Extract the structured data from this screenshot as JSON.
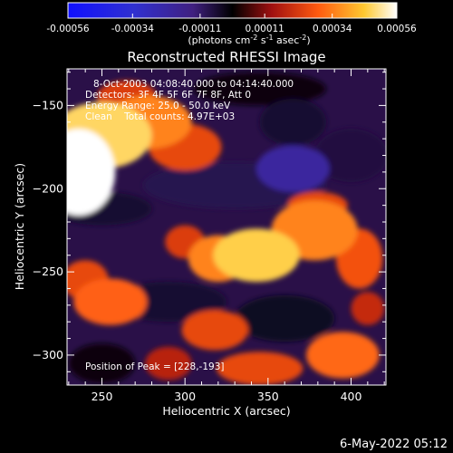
{
  "chart_data": {
    "type": "heatmap",
    "title": "Reconstructed RHESSI Image",
    "colorbar": {
      "tick_labels": [
        "-0.00056",
        "-0.00034",
        "-0.00011",
        "0.00011",
        "0.00034",
        "0.00056"
      ],
      "tick_values": [
        -0.00056,
        -0.00034,
        -0.00011,
        0.00011,
        0.00034,
        0.00056
      ],
      "range": [
        -0.00056,
        0.00056
      ],
      "units_prefix": "(photons cm",
      "units_exp1": "-2",
      "units_mid": " s",
      "units_exp2": "-1",
      "units_mid2": " asec",
      "units_exp3": "-2",
      "units_suffix": ")",
      "colors": [
        "#1010ff",
        "#3030d0",
        "#402080",
        "#000000",
        "#a01010",
        "#ff5a10",
        "#ffc830",
        "#ffffff"
      ]
    },
    "xlabel": "Heliocentric X (arcsec)",
    "ylabel": "Heliocentric Y (arcsec)",
    "xlim": [
      229,
      421
    ],
    "ylim": [
      -318,
      -128
    ],
    "xticks": [
      250,
      300,
      350,
      400
    ],
    "yticks": [
      -150,
      -200,
      -250,
      -300
    ],
    "annotations": [
      "8-Oct-2003 04:08:40.000 to 04:14:40.000",
      "Detectors: 3F 4F 5F 6F 7F 8F, Att 0",
      "Energy Range: 25.0 - 50.0 keV",
      "Clean    Total counts: 4.97E+03"
    ],
    "peak_label": "Position of Peak = [228,-193]",
    "peak": {
      "x": 228,
      "y": -193
    },
    "blobs": [
      {
        "x": 236,
        "y": -190,
        "rx": 22,
        "ry": 26,
        "v": 0.00056
      },
      {
        "x": 250,
        "y": -168,
        "rx": 30,
        "ry": 20,
        "v": 0.00044
      },
      {
        "x": 278,
        "y": -160,
        "rx": 26,
        "ry": 16,
        "v": 0.0003
      },
      {
        "x": 300,
        "y": -175,
        "rx": 22,
        "ry": 14,
        "v": 0.0002
      },
      {
        "x": 265,
        "y": -145,
        "rx": 18,
        "ry": 10,
        "v": 0.00018
      },
      {
        "x": 343,
        "y": -240,
        "rx": 26,
        "ry": 16,
        "v": 0.00042
      },
      {
        "x": 320,
        "y": -242,
        "rx": 18,
        "ry": 14,
        "v": 0.0003
      },
      {
        "x": 378,
        "y": -225,
        "rx": 26,
        "ry": 18,
        "v": 0.0003
      },
      {
        "x": 405,
        "y": -242,
        "rx": 14,
        "ry": 18,
        "v": 0.00022
      },
      {
        "x": 300,
        "y": -232,
        "rx": 12,
        "ry": 10,
        "v": 0.00018
      },
      {
        "x": 380,
        "y": -210,
        "rx": 18,
        "ry": 8,
        "v": 0.0002
      },
      {
        "x": 255,
        "y": -268,
        "rx": 22,
        "ry": 14,
        "v": 0.00025
      },
      {
        "x": 240,
        "y": -255,
        "rx": 14,
        "ry": 12,
        "v": 0.0002
      },
      {
        "x": 318,
        "y": -285,
        "rx": 20,
        "ry": 12,
        "v": 0.0002
      },
      {
        "x": 290,
        "y": -305,
        "rx": 14,
        "ry": 10,
        "v": 0.00012
      },
      {
        "x": 395,
        "y": -300,
        "rx": 22,
        "ry": 14,
        "v": 0.00026
      },
      {
        "x": 345,
        "y": -308,
        "rx": 26,
        "ry": 10,
        "v": 0.0002
      },
      {
        "x": 410,
        "y": -272,
        "rx": 10,
        "ry": 10,
        "v": 0.00014
      },
      {
        "x": 250,
        "y": -212,
        "rx": 30,
        "ry": 10,
        "v": -0.00014
      },
      {
        "x": 330,
        "y": -198,
        "rx": 55,
        "ry": 14,
        "v": -0.00018
      },
      {
        "x": 365,
        "y": -188,
        "rx": 22,
        "ry": 14,
        "v": -0.0003
      },
      {
        "x": 400,
        "y": -180,
        "rx": 22,
        "ry": 16,
        "v": -0.00016
      },
      {
        "x": 365,
        "y": -160,
        "rx": 20,
        "ry": 14,
        "v": -0.00014
      },
      {
        "x": 290,
        "y": -268,
        "rx": 35,
        "ry": 12,
        "v": -0.00014
      },
      {
        "x": 360,
        "y": -278,
        "rx": 30,
        "ry": 14,
        "v": -0.00012
      },
      {
        "x": 250,
        "y": -305,
        "rx": 20,
        "ry": 12,
        "v": -0.0001
      },
      {
        "x": 345,
        "y": -140,
        "rx": 40,
        "ry": 10,
        "v": -0.0001
      }
    ]
  },
  "footer": {
    "timestamp": "6-May-2022 05:12"
  }
}
